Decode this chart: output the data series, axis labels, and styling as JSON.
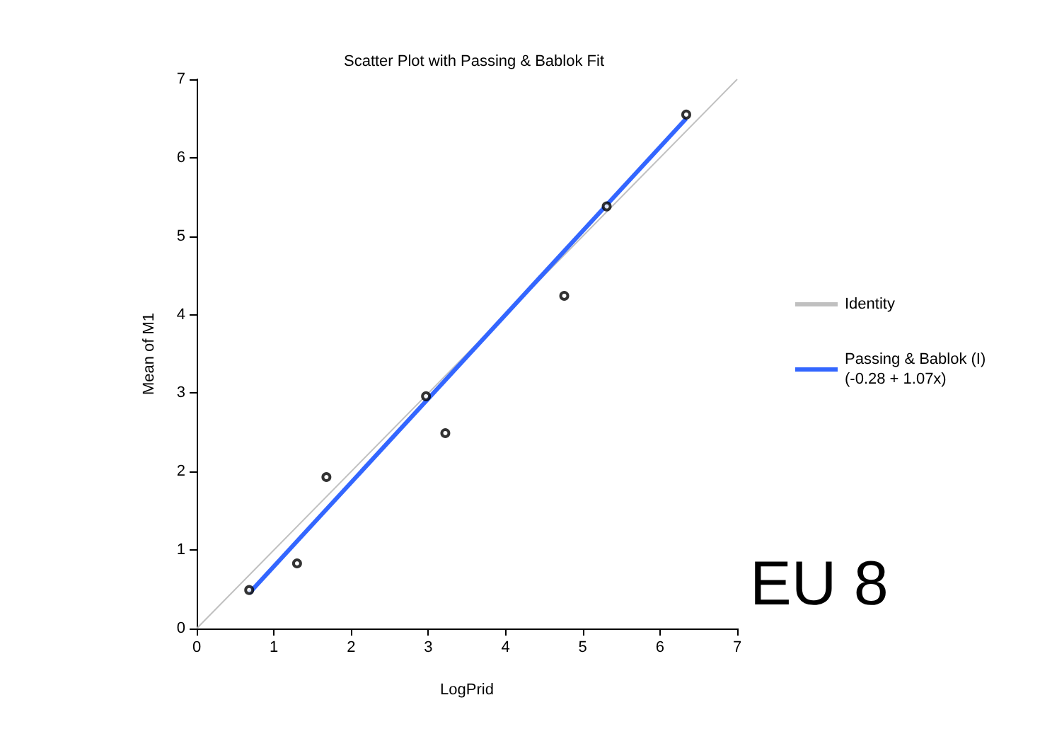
{
  "chart_data": {
    "type": "scatter",
    "title": "Scatter Plot with Passing & Bablok Fit",
    "xlabel": "LogPrid",
    "ylabel": "Mean of M1",
    "xlim": [
      0,
      7
    ],
    "xticks": [
      0,
      1,
      2,
      3,
      4,
      5,
      6,
      7
    ],
    "ylim": [
      0,
      7
    ],
    "yticks": [
      0,
      1,
      2,
      3,
      4,
      5,
      6,
      7
    ],
    "grid": false,
    "legend": "right",
    "annotations": [
      "EU 8"
    ],
    "series": [
      {
        "color": "#000000",
        "marker": "circle",
        "x": [
          0.68,
          1.3,
          1.68,
          2.97,
          3.22,
          4.76,
          5.31,
          6.34
        ],
        "values": [
          0.49,
          0.83,
          1.93,
          2.96,
          2.49,
          4.24,
          5.38,
          6.55
        ]
      },
      {
        "type": "line",
        "name": "Identity",
        "color": "#c0c0c0",
        "marker": "none",
        "x": [
          0,
          7
        ],
        "values": [
          0,
          7
        ]
      },
      {
        "type": "line",
        "name": "Passing & Bablok (I)\n(-0.28 + 1.07x)",
        "color": "#3366ff",
        "marker": "none",
        "x": [
          0.68,
          6.34
        ],
        "values": [
          0.45,
          6.5
        ]
      }
    ]
  }
}
